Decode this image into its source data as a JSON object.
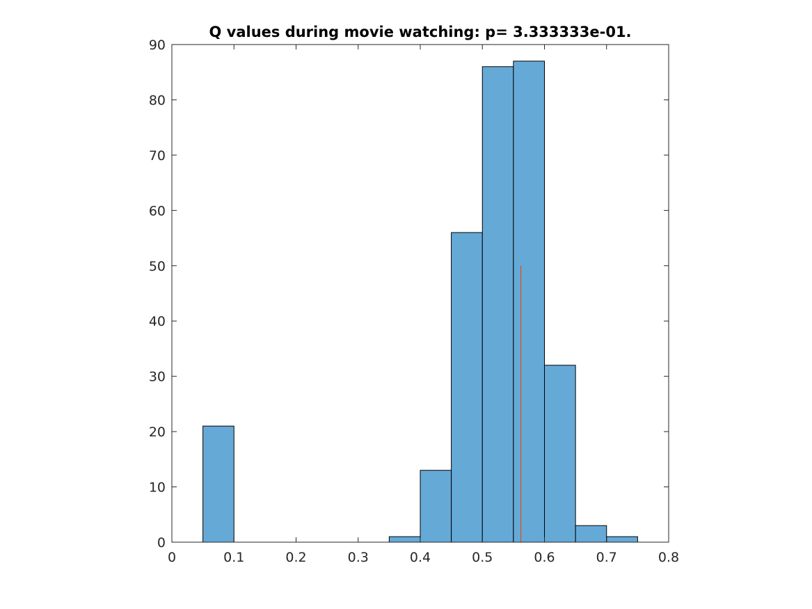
{
  "chart_data": {
    "type": "bar",
    "title": "Q values during movie watching: p= 3.333333e-01.",
    "xlabel": "",
    "ylabel": "",
    "xlim": [
      0,
      0.8
    ],
    "ylim": [
      0,
      90
    ],
    "grid": false,
    "xticks": [
      "0",
      "0.1",
      "0.2",
      "0.3",
      "0.4",
      "0.5",
      "0.6",
      "0.7",
      "0.8"
    ],
    "yticks": [
      "0",
      "10",
      "20",
      "30",
      "40",
      "50",
      "60",
      "70",
      "80",
      "90"
    ],
    "bin_width": 0.05,
    "bins": [
      {
        "start": 0.05,
        "end": 0.1,
        "count": 21
      },
      {
        "start": 0.35,
        "end": 0.4,
        "count": 1
      },
      {
        "start": 0.4,
        "end": 0.45,
        "count": 13
      },
      {
        "start": 0.45,
        "end": 0.5,
        "count": 56
      },
      {
        "start": 0.5,
        "end": 0.55,
        "count": 86
      },
      {
        "start": 0.55,
        "end": 0.6,
        "count": 87
      },
      {
        "start": 0.6,
        "end": 0.65,
        "count": 32
      },
      {
        "start": 0.65,
        "end": 0.7,
        "count": 3
      },
      {
        "start": 0.7,
        "end": 0.75,
        "count": 1
      }
    ],
    "reference_line": {
      "x": 0.562,
      "y_from": 0,
      "y_to": 50
    },
    "colors": {
      "bar_fill": "#65a9d7",
      "bar_edge": "#000000",
      "reference_line": "#d95319",
      "axis": "#262626"
    }
  }
}
